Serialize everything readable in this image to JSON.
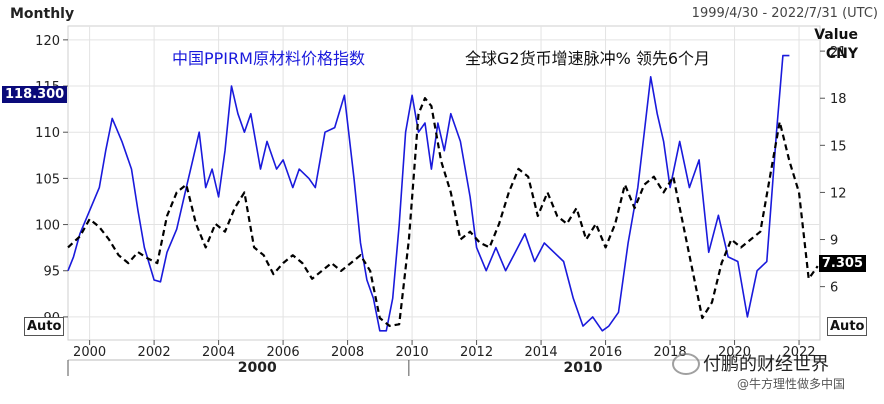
{
  "header": {
    "frequency": "Monthly",
    "date_range": "1999/4/30 - 2022/7/31 (UTC)"
  },
  "right_axis_title": {
    "line1": "Value",
    "line2": "CNY"
  },
  "auto_label": "Auto",
  "series_labels": {
    "ppirm": "中国PPIRM原材料价格指数",
    "g2": "全球G2货币增速脉冲% 领先6个月"
  },
  "value_tags": {
    "left": "118.300",
    "right": "7.305"
  },
  "watermark": {
    "line1": "付鹏的财经世界",
    "line2": "@牛方理性做多中国"
  },
  "colors": {
    "ppirm": "#1a1adc",
    "g2": "#000000",
    "left_tag_bg": "#0a0a7a",
    "right_tag_bg": "#000000"
  },
  "chart_data": {
    "type": "line",
    "x_ticks": [
      "2000",
      "2002",
      "2004",
      "2006",
      "2008",
      "2010",
      "2012",
      "2014",
      "2016",
      "2018",
      "2020",
      "2022"
    ],
    "x_decades": [
      "2000",
      "2010"
    ],
    "y_left": {
      "ticks": [
        "90",
        "95",
        "100",
        "105",
        "110",
        "115",
        "120"
      ],
      "range": [
        87.5,
        121.5
      ]
    },
    "y_right": {
      "ticks": [
        "6",
        "9",
        "12",
        "15",
        "18",
        "21"
      ],
      "range": [
        2.6,
        22.6
      ]
    },
    "grid": true,
    "series": [
      {
        "axis": "left",
        "style": "solid",
        "x": [
          1999.33,
          1999.5,
          1999.7,
          2000.0,
          2000.3,
          2000.5,
          2000.7,
          2001.0,
          2001.3,
          2001.5,
          2001.7,
          2002.0,
          2002.2,
          2002.4,
          2002.7,
          2003.0,
          2003.2,
          2003.4,
          2003.6,
          2003.8,
          2004.0,
          2004.2,
          2004.4,
          2004.6,
          2004.8,
          2005.0,
          2005.3,
          2005.5,
          2005.8,
          2006.0,
          2006.3,
          2006.5,
          2006.8,
          2007.0,
          2007.3,
          2007.6,
          2007.9,
          2008.2,
          2008.4,
          2008.6,
          2008.8,
          2009.0,
          2009.2,
          2009.4,
          2009.6,
          2009.8,
          2010.0,
          2010.2,
          2010.4,
          2010.6,
          2010.8,
          2011.0,
          2011.2,
          2011.5,
          2011.8,
          2012.0,
          2012.3,
          2012.6,
          2012.9,
          2013.2,
          2013.5,
          2013.8,
          2014.1,
          2014.4,
          2014.7,
          2015.0,
          2015.3,
          2015.6,
          2015.9,
          2016.1,
          2016.4,
          2016.7,
          2017.0,
          2017.2,
          2017.4,
          2017.6,
          2017.8,
          2018.0,
          2018.3,
          2018.6,
          2018.9,
          2019.2,
          2019.5,
          2019.8,
          2020.1,
          2020.4,
          2020.7,
          2021.0,
          2021.3,
          2021.5,
          2021.7
        ],
        "values": [
          95,
          96.5,
          99,
          101.5,
          104,
          108,
          111.5,
          109,
          106,
          101.5,
          97.5,
          94,
          93.8,
          97,
          99.5,
          104,
          107,
          110,
          104,
          106,
          103,
          108,
          115,
          112,
          110,
          112,
          106,
          109,
          106,
          107,
          104,
          106,
          105,
          104,
          110,
          110.5,
          114,
          105,
          98,
          94,
          92,
          88.5,
          88.5,
          92,
          100,
          110,
          114,
          110,
          111,
          106,
          111,
          108,
          112,
          109,
          103,
          97.5,
          95,
          97.5,
          95,
          97,
          99,
          96,
          98,
          97,
          96,
          92,
          89,
          90,
          88.5,
          89,
          90.5,
          98,
          104,
          110,
          116,
          112,
          109,
          104,
          109,
          104,
          107,
          97,
          101,
          96.5,
          96,
          90,
          95,
          96,
          110,
          118.3,
          118.3
        ]
      },
      {
        "axis": "right",
        "style": "dashed",
        "x": [
          1999.33,
          1999.7,
          2000.0,
          2000.3,
          2000.6,
          2000.9,
          2001.2,
          2001.5,
          2001.8,
          2002.1,
          2002.4,
          2002.7,
          2003.0,
          2003.3,
          2003.6,
          2003.9,
          2004.2,
          2004.5,
          2004.8,
          2005.1,
          2005.4,
          2005.7,
          2006.0,
          2006.3,
          2006.6,
          2006.9,
          2007.2,
          2007.5,
          2007.8,
          2008.1,
          2008.4,
          2008.7,
          2009.0,
          2009.3,
          2009.6,
          2009.9,
          2010.2,
          2010.4,
          2010.6,
          2010.9,
          2011.2,
          2011.5,
          2011.8,
          2012.1,
          2012.4,
          2012.7,
          2013.0,
          2013.3,
          2013.6,
          2013.9,
          2014.2,
          2014.5,
          2014.8,
          2015.1,
          2015.4,
          2015.7,
          2016.0,
          2016.3,
          2016.6,
          2016.9,
          2017.2,
          2017.5,
          2017.8,
          2018.1,
          2018.4,
          2018.7,
          2019.0,
          2019.3,
          2019.6,
          2019.9,
          2020.2,
          2020.5,
          2020.8,
          2021.1,
          2021.4,
          2021.7,
          2022.0,
          2022.3,
          2022.58
        ],
        "values": [
          8.5,
          9.2,
          10.3,
          9.8,
          9.0,
          8.0,
          7.5,
          8.2,
          7.8,
          7.5,
          10.5,
          12.0,
          12.5,
          10.0,
          8.5,
          10.0,
          9.5,
          11.0,
          12.0,
          8.5,
          8.0,
          6.8,
          7.5,
          8.0,
          7.5,
          6.5,
          7.0,
          7.5,
          7.0,
          7.5,
          8.0,
          7.0,
          4.0,
          3.5,
          3.6,
          9.0,
          17.0,
          18.0,
          17.5,
          14.0,
          12.0,
          9.0,
          9.5,
          8.8,
          8.5,
          10.0,
          12.0,
          13.5,
          13.0,
          10.5,
          12.0,
          10.5,
          10.0,
          11.0,
          9.0,
          10.0,
          8.5,
          10.0,
          12.5,
          11.0,
          12.5,
          13.0,
          12.0,
          13.0,
          10.0,
          7.0,
          4.0,
          5.0,
          7.5,
          9.0,
          8.5,
          9.0,
          9.5,
          13.0,
          16.5,
          14.0,
          12.0,
          6.5,
          7.305
        ]
      }
    ]
  }
}
